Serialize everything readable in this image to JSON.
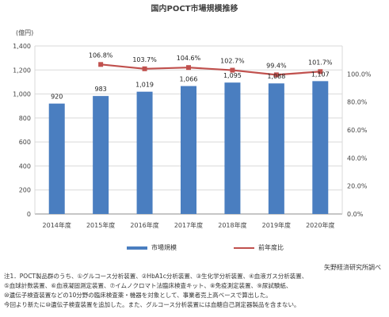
{
  "chart_data": {
    "type": "bar",
    "title": "国内POCT市場規模推移",
    "categories": [
      "2014年度",
      "2015年度",
      "2016年度",
      "2017年度",
      "2018年度",
      "2019年度",
      "2020年度"
    ],
    "series": [
      {
        "name": "市場規模",
        "type": "bar",
        "axis": "left",
        "values": [
          920,
          983,
          1019,
          1066,
          1095,
          1088,
          1107
        ],
        "labels": [
          "920",
          "983",
          "1,019",
          "1,066",
          "1,095",
          "1,088",
          "1,107"
        ],
        "color": "#4a7ec0"
      },
      {
        "name": "前年度比",
        "type": "line",
        "axis": "right",
        "x": [
          "2015年度",
          "2016年度",
          "2017年度",
          "2018年度",
          "2019年度",
          "2020年度"
        ],
        "values": [
          106.8,
          103.7,
          104.6,
          102.7,
          99.4,
          101.7
        ],
        "labels": [
          "106.8%",
          "103.7%",
          "104.6%",
          "102.7%",
          "99.4%",
          "101.7%"
        ],
        "color": "#c0504d"
      }
    ],
    "ylabel": "(億円)",
    "ylim": [
      0,
      1400
    ],
    "yticks": [
      "0",
      "200",
      "400",
      "600",
      "800",
      "1,000",
      "1,200",
      "1,400"
    ],
    "y2lim": [
      0,
      120
    ],
    "y2ticks": [
      "0.0%",
      "20.0%",
      "40.0%",
      "60.0%",
      "80.0%",
      "100.0%"
    ],
    "grid": true,
    "legend_position": "bottom"
  },
  "source": "矢野経済研究所調べ",
  "notes": [
    "注1．POCT製品群のうち、①グルコース分析装置、②HbA1c分析装置、③生化学分析装置、④血液ガス分析装置、",
    "⑤血球計数装置、⑥血液凝固測定装置、⑦イムノクロマト法臨床検査キット、⑧免疫測定装置、⑨尿試験紙、",
    "⑩遺伝子検査装置などの10分野の臨床検査薬・機器を対象として、事業者売上高ベースで算出した。",
    "今回より新たに⑩遺伝子検査装置を追加した。また、グルコース分析装置には血糖自己測定器製品を含まない。"
  ]
}
